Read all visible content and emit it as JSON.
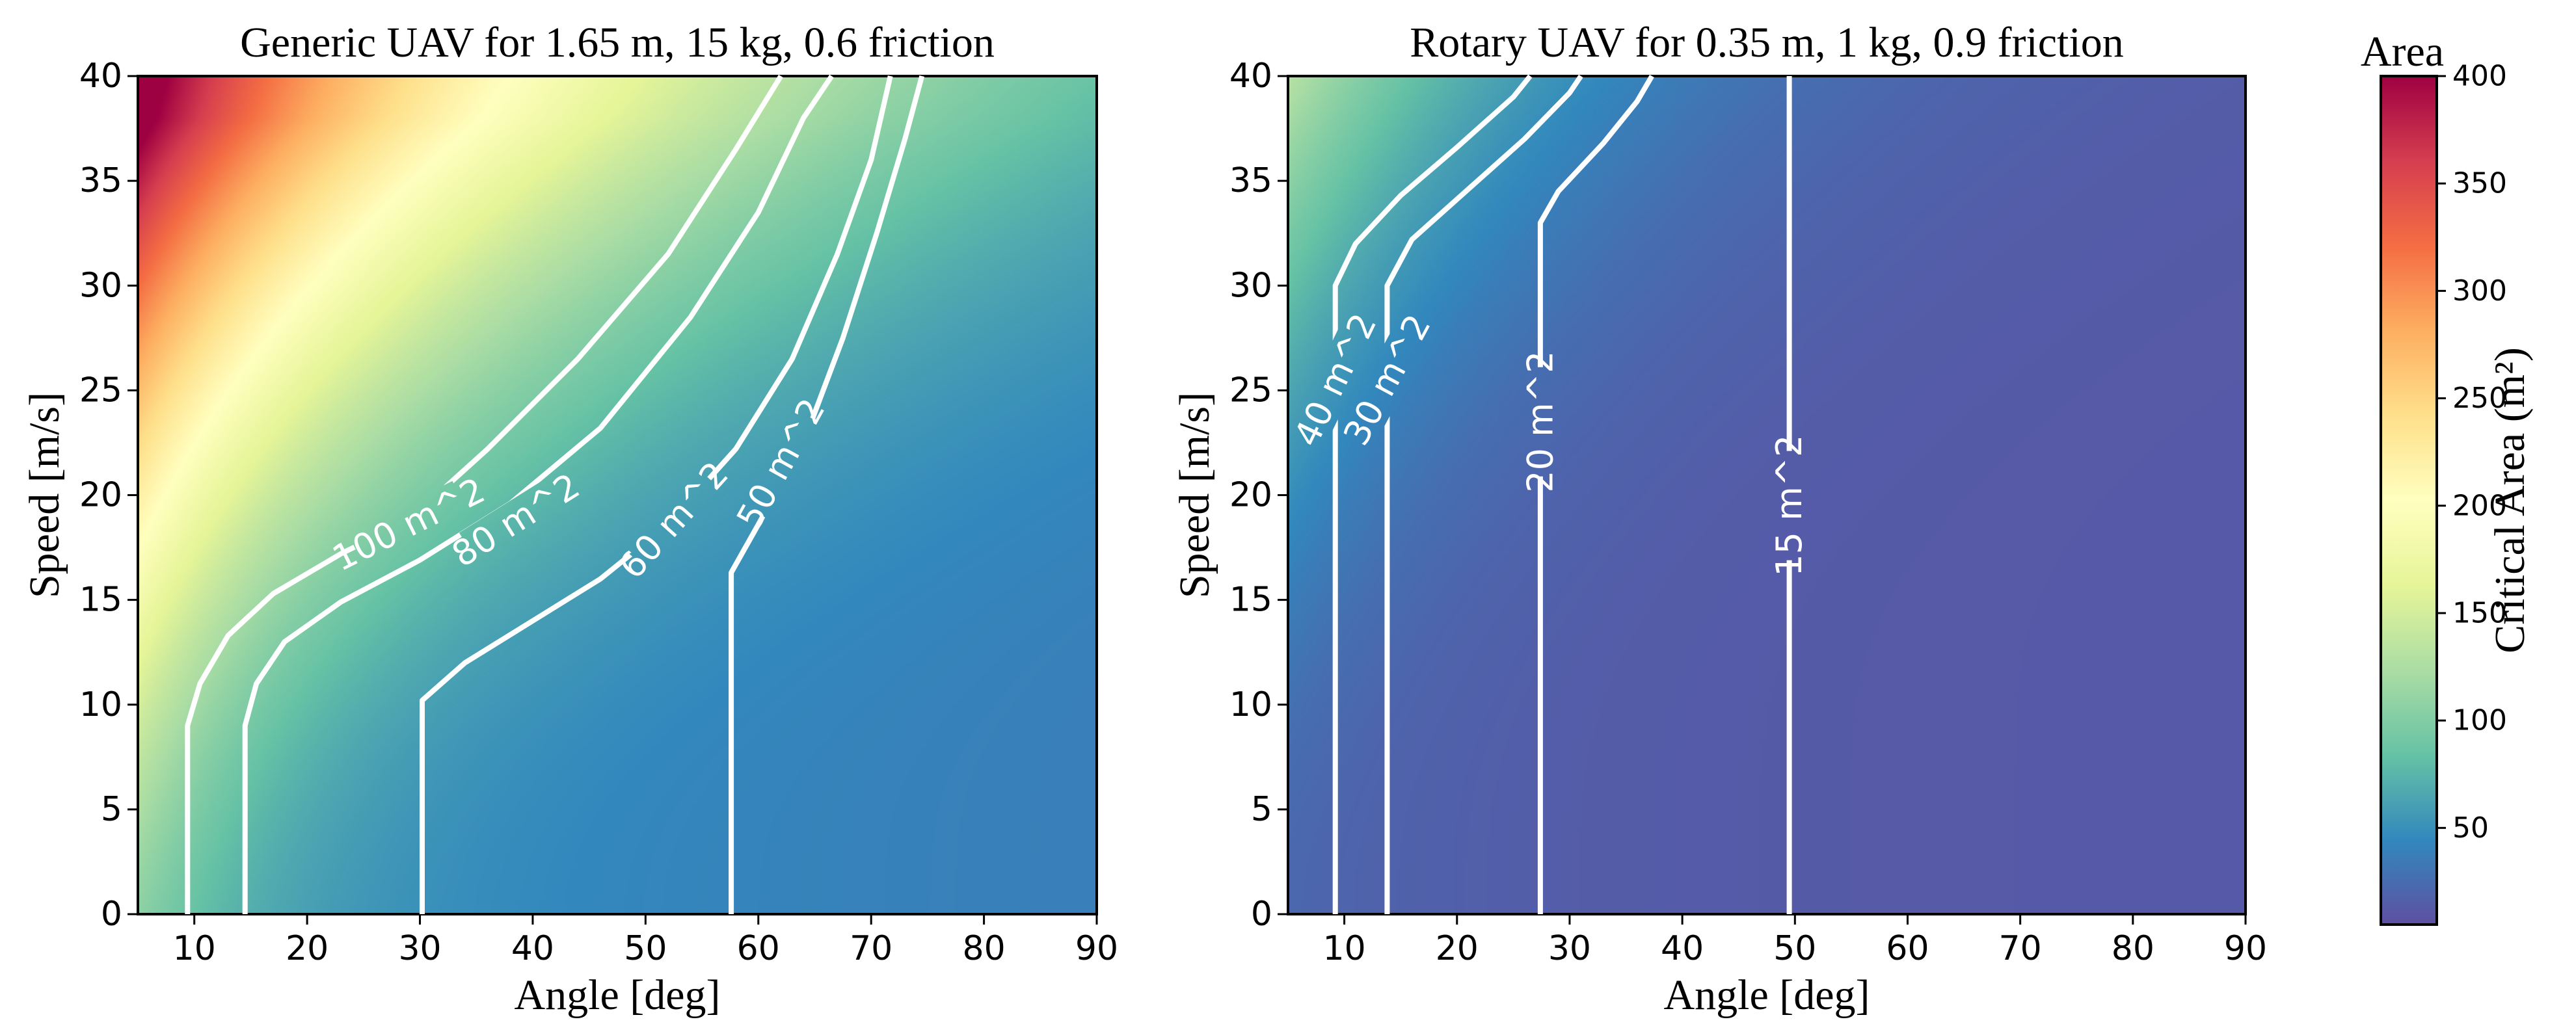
{
  "colorbar": {
    "title": "Area",
    "label": "Critical Area (m²)",
    "ticks": [
      50,
      100,
      150,
      200,
      250,
      300,
      350,
      400
    ],
    "range": [
      5,
      400
    ],
    "colormap": "Spectral_r",
    "colormap_stops": [
      "#5e4fa2",
      "#3288bd",
      "#66c2a5",
      "#abdda4",
      "#e6f598",
      "#ffffbf",
      "#fee08b",
      "#fdae61",
      "#f46d43",
      "#d53e4f",
      "#9e0142"
    ]
  },
  "chart_data": [
    {
      "type": "heatmap",
      "title": "Generic UAV for 1.65 m, 15 kg, 0.6 friction",
      "xlabel": "Angle [deg]",
      "ylabel": "Speed  [m/s]",
      "xlim": [
        5,
        90
      ],
      "ylim": [
        0,
        40
      ],
      "xticks": [
        10,
        20,
        30,
        40,
        50,
        60,
        70,
        80,
        90
      ],
      "yticks": [
        0,
        5,
        10,
        15,
        20,
        25,
        30,
        35,
        40
      ],
      "grid": false,
      "contour_color": "#ffffff",
      "contours": [
        {
          "label": "100 m^2",
          "level": 100,
          "label_at": [
            29,
            18.6
          ],
          "points": [
            [
              9.4,
              0
            ],
            [
              9.4,
              9
            ],
            [
              10.5,
              11
            ],
            [
              13,
              13.3
            ],
            [
              17,
              15.3
            ],
            [
              23,
              17.2
            ],
            [
              29,
              18.8
            ],
            [
              36,
              22.2
            ],
            [
              44,
              26.5
            ],
            [
              52,
              31.5
            ],
            [
              58,
              36.5
            ],
            [
              62,
              40
            ]
          ]
        },
        {
          "label": "80 m^2",
          "level": 80,
          "label_at": [
            38.5,
            18.8
          ],
          "points": [
            [
              14.5,
              0
            ],
            [
              14.5,
              9
            ],
            [
              15.5,
              11
            ],
            [
              18,
              13
            ],
            [
              23,
              14.9
            ],
            [
              30,
              16.9
            ],
            [
              38,
              19.6
            ],
            [
              46,
              23.2
            ],
            [
              54,
              28.5
            ],
            [
              60,
              33.5
            ],
            [
              64,
              38
            ],
            [
              66.5,
              40
            ]
          ]
        },
        {
          "label": "60 m^2",
          "level": 60,
          "label_at": [
            52.5,
            18.8
          ],
          "points": [
            [
              30.2,
              0
            ],
            [
              30.2,
              10.2
            ],
            [
              34,
              12
            ],
            [
              40,
              14
            ],
            [
              46,
              16
            ],
            [
              52,
              18.6
            ],
            [
              58,
              22.2
            ],
            [
              63,
              26.5
            ],
            [
              67,
              31.5
            ],
            [
              70,
              36
            ],
            [
              71.7,
              40
            ]
          ]
        },
        {
          "label": "50 m^2",
          "level": 50,
          "label_at": [
            62,
            21.5
          ],
          "points": [
            [
              57.6,
              0
            ],
            [
              57.6,
              16.3
            ],
            [
              60,
              18.6
            ],
            [
              64,
              22.5
            ],
            [
              67.5,
              27.5
            ],
            [
              70.5,
              32.5
            ],
            [
              73,
              37
            ],
            [
              74.5,
              40
            ]
          ]
        }
      ]
    },
    {
      "type": "heatmap",
      "title": "Rotary UAV for 0.35 m, 1 kg, 0.9 friction",
      "xlabel": "Angle [deg]",
      "ylabel": "Speed  [m/s]",
      "xlim": [
        5,
        90
      ],
      "ylim": [
        0,
        40
      ],
      "xticks": [
        10,
        20,
        30,
        40,
        50,
        60,
        70,
        80,
        90
      ],
      "yticks": [
        0,
        5,
        10,
        15,
        20,
        25,
        30,
        35,
        40
      ],
      "grid": false,
      "contour_color": "#ffffff",
      "contours": [
        {
          "label": "40 m^2",
          "level": 40,
          "label_at": [
            9.2,
            25.5
          ],
          "points": [
            [
              9.2,
              0
            ],
            [
              9.2,
              30
            ],
            [
              11,
              32
            ],
            [
              15,
              34.3
            ],
            [
              20,
              36.6
            ],
            [
              25,
              39
            ],
            [
              26.5,
              40
            ]
          ]
        },
        {
          "label": "30 m^2",
          "level": 30,
          "label_at": [
            13.8,
            25.5
          ],
          "points": [
            [
              13.8,
              0
            ],
            [
              13.8,
              30
            ],
            [
              16,
              32.2
            ],
            [
              21,
              34.6
            ],
            [
              26,
              37
            ],
            [
              30,
              39.2
            ],
            [
              31,
              40
            ]
          ]
        },
        {
          "label": "20 m^2",
          "level": 20,
          "label_at": [
            27.4,
            23.5
          ],
          "points": [
            [
              27.4,
              0
            ],
            [
              27.4,
              33
            ],
            [
              29,
              34.5
            ],
            [
              33,
              36.8
            ],
            [
              36,
              38.8
            ],
            [
              37.3,
              40
            ]
          ]
        },
        {
          "label": "15 m^2",
          "level": 15,
          "label_at": [
            49.5,
            19.5
          ],
          "points": [
            [
              49.5,
              0
            ],
            [
              49.5,
              40
            ]
          ]
        }
      ]
    }
  ]
}
